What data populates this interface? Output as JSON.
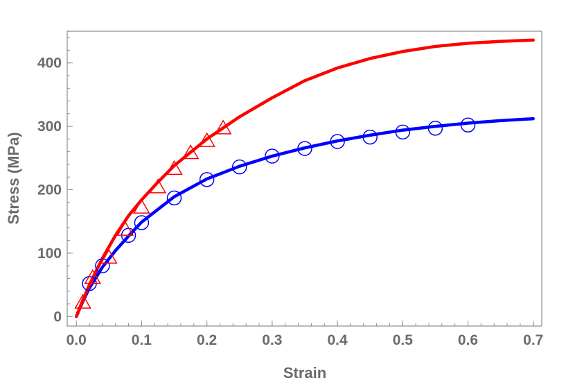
{
  "chart_data": {
    "type": "scatter",
    "title": "",
    "xlabel": "Strain",
    "ylabel": "Stress (MPa)",
    "xlim": [
      -0.014,
      0.713
    ],
    "ylim": [
      -15,
      450
    ],
    "xticks": [
      0.0,
      0.1,
      0.2,
      0.3,
      0.4,
      0.5,
      0.6,
      0.7
    ],
    "xtick_labels": [
      "0.0",
      "0.1",
      "0.2",
      "0.3",
      "0.4",
      "0.5",
      "0.6",
      "0.7"
    ],
    "yticks": [
      0,
      100,
      200,
      300,
      400
    ],
    "ytick_labels": [
      "0",
      "100",
      "200",
      "300",
      "400"
    ],
    "grid": false,
    "legend": "none",
    "series": [
      {
        "kind": "points",
        "marker": "circle",
        "color": "#0000ff",
        "x": [
          0.02,
          0.04,
          0.08,
          0.1,
          0.15,
          0.2,
          0.25,
          0.3,
          0.35,
          0.4,
          0.45,
          0.5,
          0.55,
          0.6
        ],
        "y": [
          52,
          80,
          128,
          148,
          187,
          216,
          236,
          253,
          265,
          276,
          283,
          291,
          297,
          302
        ]
      },
      {
        "kind": "points",
        "marker": "triangle",
        "color": "#ff0000",
        "x": [
          0.01,
          0.025,
          0.05,
          0.075,
          0.1,
          0.125,
          0.15,
          0.175,
          0.2,
          0.225
        ],
        "y": [
          22,
          61,
          93,
          137,
          172,
          204,
          233,
          258,
          277,
          297
        ]
      },
      {
        "kind": "line",
        "color": "#0000ff",
        "x": [
          0,
          0.01,
          0.02,
          0.04,
          0.06,
          0.08,
          0.1,
          0.15,
          0.2,
          0.25,
          0.3,
          0.35,
          0.4,
          0.45,
          0.5,
          0.55,
          0.6,
          0.65,
          0.7
        ],
        "y": [
          0,
          24,
          45,
          78,
          104,
          127,
          149,
          189,
          217,
          237,
          253,
          266,
          277,
          286,
          294,
          300,
          305,
          309,
          312
        ]
      },
      {
        "kind": "line",
        "color": "#ff0000",
        "x": [
          0,
          0.01,
          0.02,
          0.04,
          0.06,
          0.08,
          0.1,
          0.125,
          0.15,
          0.2,
          0.25,
          0.3,
          0.35,
          0.4,
          0.45,
          0.5,
          0.55,
          0.6,
          0.65,
          0.7
        ],
        "y": [
          0,
          26,
          50,
          92,
          128,
          159,
          184,
          212,
          238,
          280,
          315,
          345,
          372,
          392,
          407,
          418,
          426,
          431,
          434,
          436
        ]
      }
    ]
  }
}
